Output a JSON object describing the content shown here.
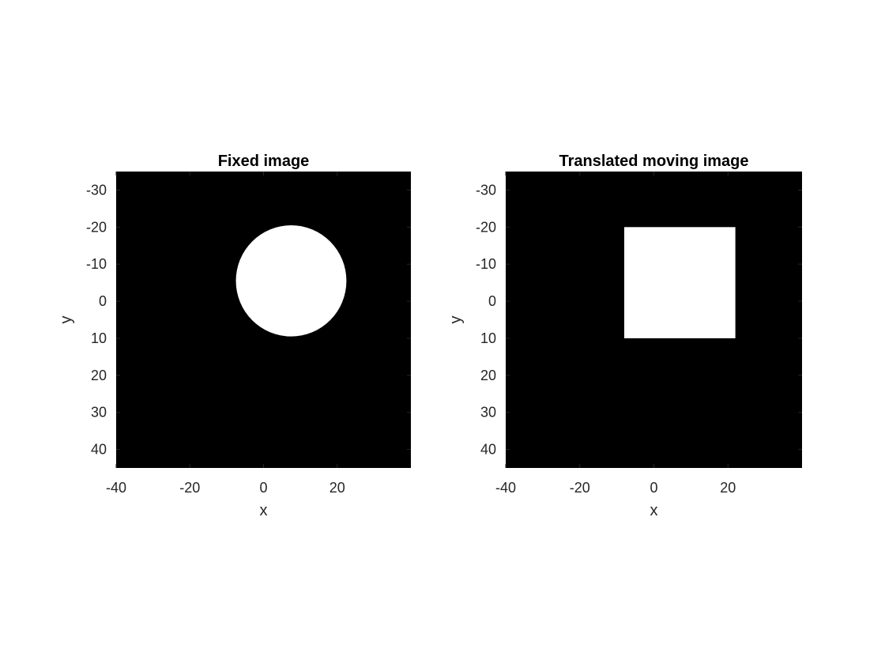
{
  "chart_data": [
    {
      "type": "heatmap",
      "title": "Fixed image",
      "xlabel": "x",
      "ylabel": "y",
      "xlim": [
        -40,
        40
      ],
      "ylim": [
        -35,
        45
      ],
      "y_reversed": true,
      "xticks": [
        -40,
        -20,
        0,
        20
      ],
      "yticks": [
        -30,
        -20,
        -10,
        0,
        10,
        20,
        30,
        40
      ],
      "background_color": "#000000",
      "foreground_color": "#ffffff",
      "shape": {
        "kind": "circle",
        "center": [
          7.5,
          -5.5
        ],
        "radius": 15
      }
    },
    {
      "type": "heatmap",
      "title": "Translated moving image",
      "xlabel": "x",
      "ylabel": "y",
      "xlim": [
        -40,
        40
      ],
      "ylim": [
        -35,
        45
      ],
      "y_reversed": true,
      "xticks": [
        -40,
        -20,
        0,
        20
      ],
      "yticks": [
        -30,
        -20,
        -10,
        0,
        10,
        20,
        30,
        40
      ],
      "background_color": "#000000",
      "foreground_color": "#ffffff",
      "shape": {
        "kind": "rect",
        "x_range": [
          -8,
          22
        ],
        "y_range": [
          -20,
          10
        ]
      }
    }
  ]
}
